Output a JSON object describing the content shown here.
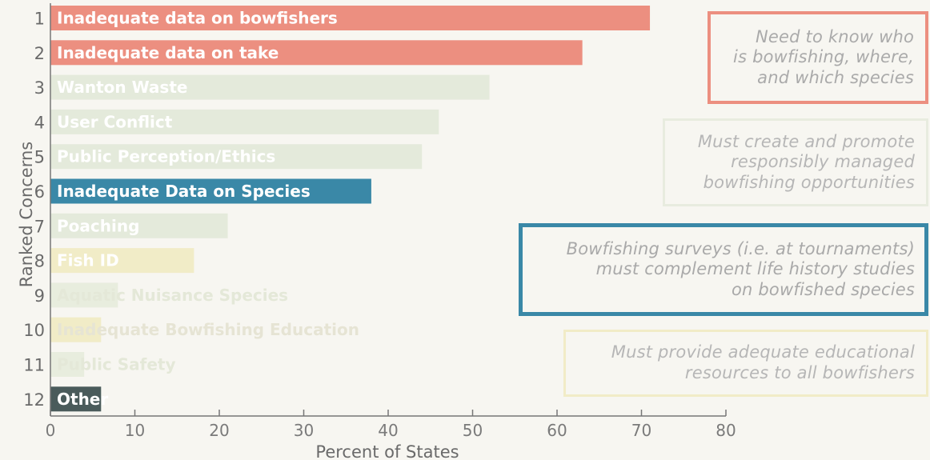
{
  "chart_data": {
    "type": "bar",
    "orientation": "horizontal",
    "xlabel": "Percent of States",
    "ylabel": "Ranked Concerns",
    "xlim": [
      0,
      80
    ],
    "xticks": [
      0,
      10,
      20,
      30,
      40,
      50,
      60,
      70,
      80
    ],
    "categories": [
      {
        "rank": "1",
        "label": "Inadequate data on bowfishers",
        "value": 71,
        "color": "#ec8f80",
        "label_color": "#ffffff"
      },
      {
        "rank": "2",
        "label": "Inadequate data on take",
        "value": 63,
        "color": "#ec8f80",
        "label_color": "#ffffff"
      },
      {
        "rank": "3",
        "label": "Wanton Waste",
        "value": 52,
        "color": "#e4eadb",
        "label_color": "#ffffff"
      },
      {
        "rank": "4",
        "label": "User Conflict",
        "value": 46,
        "color": "#e4eadb",
        "label_color": "#ffffff"
      },
      {
        "rank": "5",
        "label": "Public Perception/Ethics",
        "value": 44,
        "color": "#e4eadb",
        "label_color": "#ffffff"
      },
      {
        "rank": "6",
        "label": "Inadequate Data on Species",
        "value": 38,
        "color": "#3a88a7",
        "label_color": "#ffffff"
      },
      {
        "rank": "7",
        "label": "Poaching",
        "value": 21,
        "color": "#e4eadb",
        "label_color": "#ffffff"
      },
      {
        "rank": "8",
        "label": "Fish ID",
        "value": 17,
        "color": "#f1ecc7",
        "label_color": "#ffffff"
      },
      {
        "rank": "9",
        "label": "Aquatic Nuisance Species",
        "value": 8,
        "color": "#e8edde",
        "label_color": "#e4e8d8"
      },
      {
        "rank": "10",
        "label": "Inadequate Bowfishing Education",
        "value": 6,
        "color": "#f1ecc7",
        "label_color": "#e6e4d4"
      },
      {
        "rank": "11",
        "label": "Public Safety",
        "value": 4,
        "color": "#e8edde",
        "label_color": "#e4e8d8"
      },
      {
        "rank": "12",
        "label": "Other",
        "value": 6,
        "color": "#4a5b5b",
        "label_color": "#ffffff"
      }
    ],
    "annotations": [
      {
        "text": "Need to know who\nis bowfishing, where,\nand which species",
        "border": "#ec8f80",
        "text_color": "#aaaaaa"
      },
      {
        "text": "Must create and promote\nresponsibly managed\nbowfishing opportunities",
        "border": "#e8ecdf",
        "text_color": "#b6b6b6"
      },
      {
        "text": "Bowfishing surveys (i.e. at tournaments)\nmust complement life history studies\non bowfished species",
        "border": "#3a88a7",
        "text_color": "#a9a9a9"
      },
      {
        "text": "Must provide adequate educational\nresources to all bowfishers",
        "border": "#f1ecc7",
        "text_color": "#b6b6b6"
      }
    ],
    "grid": false
  }
}
